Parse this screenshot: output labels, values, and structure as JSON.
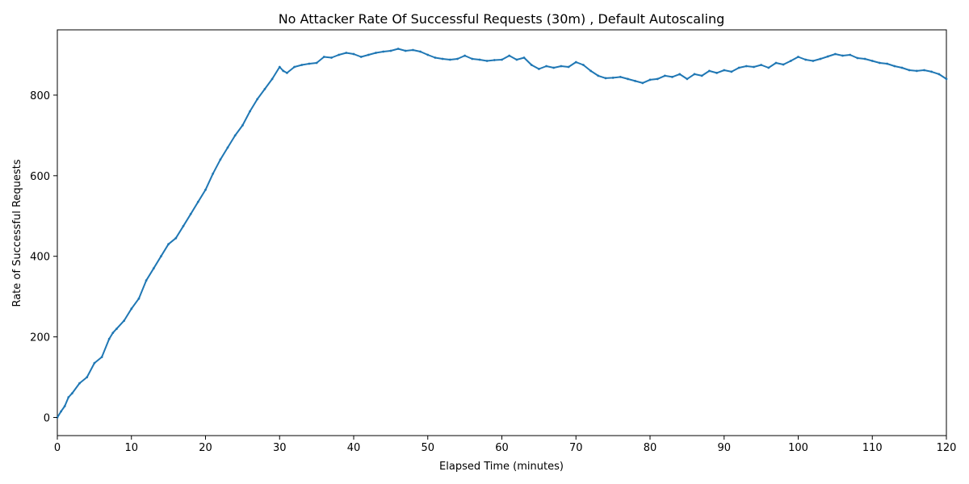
{
  "chart_data": {
    "type": "line",
    "title": "No Attacker Rate Of Successful Requests (30m) , Default Autoscaling",
    "xlabel": "Elapsed Time (minutes)",
    "ylabel": "Rate of Successful Requests",
    "xlim": [
      0,
      120
    ],
    "ylim": [
      -45,
      962
    ],
    "x_ticks": [
      0,
      10,
      20,
      30,
      40,
      50,
      60,
      70,
      80,
      90,
      100,
      110,
      120
    ],
    "y_ticks": [
      0,
      200,
      400,
      600,
      800
    ],
    "grid": false,
    "legend": "none",
    "series": [
      {
        "color": "#1f77b4",
        "x": [
          0,
          0.5,
          1,
          1.5,
          2,
          3,
          4,
          5,
          6,
          7,
          7.5,
          8,
          9,
          10,
          11,
          12,
          13,
          14,
          15,
          16,
          17,
          18,
          19,
          20,
          21,
          22,
          23,
          24,
          25,
          26,
          27,
          28,
          29,
          30,
          30.5,
          31,
          32,
          33,
          34,
          35,
          36,
          37,
          38,
          39,
          40,
          41,
          42,
          43,
          44,
          45,
          46,
          47,
          48,
          49,
          50,
          51,
          52,
          53,
          54,
          55,
          56,
          57,
          58,
          59,
          60,
          61,
          62,
          63,
          64,
          65,
          66,
          67,
          68,
          69,
          70,
          71,
          72,
          73,
          74,
          75,
          76,
          77,
          78,
          79,
          80,
          81,
          82,
          83,
          84,
          85,
          86,
          87,
          88,
          89,
          90,
          91,
          92,
          93,
          94,
          95,
          96,
          97,
          98,
          99,
          100,
          101,
          102,
          103,
          104,
          105,
          106,
          107,
          108,
          109,
          110,
          111,
          112,
          113,
          114,
          115,
          116,
          117,
          118,
          119,
          120
        ],
        "y": [
          0,
          15,
          28,
          50,
          60,
          85,
          100,
          135,
          150,
          195,
          210,
          220,
          240,
          270,
          295,
          340,
          370,
          400,
          430,
          445,
          475,
          505,
          535,
          565,
          605,
          640,
          670,
          700,
          725,
          760,
          790,
          815,
          840,
          870,
          860,
          855,
          870,
          875,
          878,
          880,
          895,
          893,
          900,
          905,
          902,
          895,
          900,
          905,
          908,
          910,
          915,
          910,
          912,
          908,
          900,
          893,
          890,
          888,
          890,
          898,
          890,
          888,
          885,
          887,
          888,
          898,
          888,
          893,
          875,
          865,
          872,
          868,
          872,
          870,
          882,
          875,
          860,
          848,
          842,
          843,
          845,
          840,
          835,
          830,
          838,
          840,
          848,
          845,
          852,
          840,
          852,
          848,
          860,
          855,
          862,
          858,
          868,
          872,
          870,
          875,
          868,
          880,
          876,
          885,
          895,
          888,
          885,
          890,
          896,
          902,
          898,
          900,
          892,
          890,
          885,
          880,
          878,
          872,
          868,
          862,
          860,
          862,
          858,
          852,
          840
        ]
      }
    ]
  }
}
